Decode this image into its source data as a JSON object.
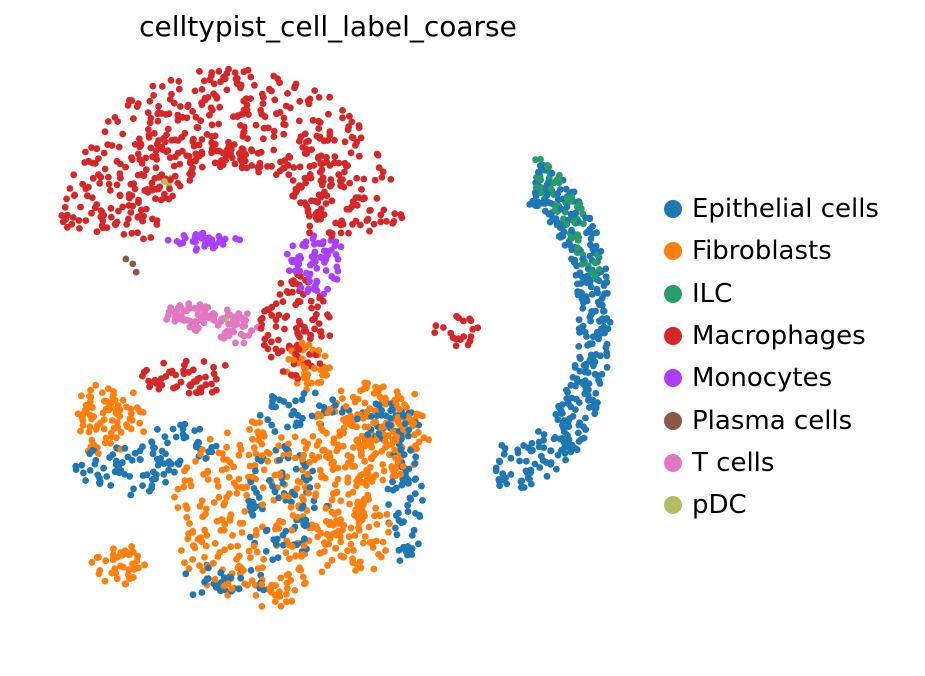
{
  "chart_data": {
    "type": "scatter",
    "title": "celltypist_cell_label_coarse",
    "xlabel": "",
    "ylabel": "",
    "axes_visible": false,
    "grid": false,
    "legend_position": "right",
    "xlim": [
      0,
      10
    ],
    "ylim": [
      0,
      10
    ],
    "series": [
      {
        "name": "Epithelial cells",
        "color": "#1f77b4",
        "clusters": [
          {
            "kind": "ring",
            "cx": 8.0,
            "cy": 5.6,
            "rx": 1.85,
            "ry": 3.1,
            "a0": -95,
            "a1": 70,
            "r0": 0.7,
            "r1": 1.0,
            "n": 360
          },
          {
            "kind": "blob",
            "cx": 1.5,
            "cy": 3.0,
            "rx": 0.9,
            "ry": 0.4,
            "n": 60
          },
          {
            "kind": "blob",
            "cx": 2.4,
            "cy": 3.4,
            "rx": 0.6,
            "ry": 0.4,
            "n": 40
          },
          {
            "kind": "blob",
            "cx": 4.2,
            "cy": 2.4,
            "rx": 0.7,
            "ry": 1.0,
            "n": 80
          },
          {
            "kind": "blob",
            "cx": 6.3,
            "cy": 2.5,
            "rx": 0.3,
            "ry": 1.2,
            "n": 60
          },
          {
            "kind": "blob",
            "cx": 4.5,
            "cy": 4.0,
            "rx": 0.8,
            "ry": 0.3,
            "n": 40
          },
          {
            "kind": "blob",
            "cx": 6.0,
            "cy": 3.8,
            "rx": 0.5,
            "ry": 0.4,
            "n": 40
          },
          {
            "kind": "blob",
            "cx": 3.2,
            "cy": 1.0,
            "rx": 0.8,
            "ry": 0.3,
            "n": 30
          }
        ]
      },
      {
        "name": "Fibroblasts",
        "color": "#ff7f0e",
        "clusters": [
          {
            "kind": "blob",
            "cx": 3.8,
            "cy": 2.2,
            "rx": 1.5,
            "ry": 1.6,
            "n": 300
          },
          {
            "kind": "blob",
            "cx": 5.7,
            "cy": 3.6,
            "rx": 1.0,
            "ry": 0.9,
            "n": 220
          },
          {
            "kind": "blob",
            "cx": 1.2,
            "cy": 3.9,
            "rx": 0.6,
            "ry": 0.6,
            "n": 80
          },
          {
            "kind": "blob",
            "cx": 1.4,
            "cy": 1.3,
            "rx": 0.5,
            "ry": 0.3,
            "n": 40
          },
          {
            "kind": "blob",
            "cx": 5.5,
            "cy": 1.9,
            "rx": 0.6,
            "ry": 0.7,
            "n": 80
          },
          {
            "kind": "blob",
            "cx": 4.6,
            "cy": 4.8,
            "rx": 0.4,
            "ry": 0.4,
            "n": 40
          }
        ]
      },
      {
        "name": "ILC",
        "color": "#279e68",
        "clusters": [
          {
            "kind": "ring",
            "cx": 8.0,
            "cy": 5.6,
            "rx": 1.85,
            "ry": 3.1,
            "a0": 15,
            "a1": 75,
            "r0": 0.78,
            "r1": 0.98,
            "n": 70
          }
        ]
      },
      {
        "name": "Macrophages",
        "color": "#d62728",
        "clusters": [
          {
            "kind": "ring",
            "cx": 3.3,
            "cy": 6.8,
            "rx": 3.0,
            "ry": 3.3,
            "a0": 8,
            "a1": 172,
            "r0": 0.45,
            "r1": 1.0,
            "n": 560
          },
          {
            "kind": "blob",
            "cx": 4.4,
            "cy": 5.5,
            "rx": 0.6,
            "ry": 0.9,
            "n": 100
          },
          {
            "kind": "blob",
            "cx": 2.5,
            "cy": 4.6,
            "rx": 0.8,
            "ry": 0.3,
            "n": 50
          },
          {
            "kind": "blob",
            "cx": 7.2,
            "cy": 5.4,
            "rx": 0.4,
            "ry": 0.3,
            "n": 20
          }
        ]
      },
      {
        "name": "Monocytes",
        "color": "#aa40fc",
        "clusters": [
          {
            "kind": "blob",
            "cx": 4.75,
            "cy": 6.6,
            "rx": 0.5,
            "ry": 0.5,
            "n": 70
          },
          {
            "kind": "blob",
            "cx": 2.8,
            "cy": 7.0,
            "rx": 0.7,
            "ry": 0.1,
            "n": 35
          }
        ]
      },
      {
        "name": "Plasma cells",
        "color": "#8c564b",
        "clusters": [
          {
            "kind": "blob",
            "cx": 1.6,
            "cy": 6.5,
            "rx": 0.2,
            "ry": 0.2,
            "n": 3
          }
        ]
      },
      {
        "name": "T cells",
        "color": "#e377c2",
        "clusters": [
          {
            "kind": "blob",
            "cx": 2.6,
            "cy": 5.7,
            "rx": 0.45,
            "ry": 0.25,
            "n": 55
          },
          {
            "kind": "blob",
            "cx": 3.4,
            "cy": 5.5,
            "rx": 0.35,
            "ry": 0.3,
            "n": 40
          }
        ]
      },
      {
        "name": "pDC",
        "color": "#b5bd61",
        "clusters": [
          {
            "kind": "blob",
            "cx": 2.3,
            "cy": 8.0,
            "rx": 0.15,
            "ry": 0.15,
            "n": 3
          },
          {
            "kind": "blob",
            "cx": 3.2,
            "cy": 5.6,
            "rx": 0.1,
            "ry": 0.1,
            "n": 2
          }
        ]
      }
    ]
  }
}
